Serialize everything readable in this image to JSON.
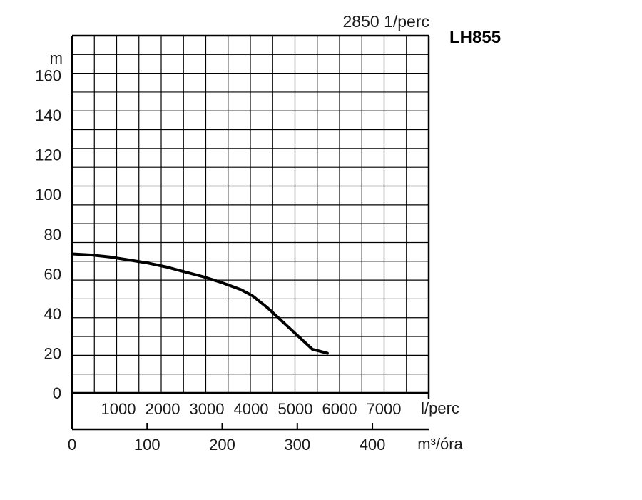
{
  "chart_data": {
    "type": "line",
    "speed_label": "2850 1/perc",
    "model_label": "LH855",
    "y_unit": "m",
    "ylim": [
      0,
      180
    ],
    "y_ticks": [
      {
        "value": 0,
        "label": "0"
      },
      {
        "value": 20,
        "label": "20"
      },
      {
        "value": 40,
        "label": "40"
      },
      {
        "value": 60,
        "label": "60"
      },
      {
        "value": 80,
        "label": "80"
      },
      {
        "value": 100,
        "label": "100"
      },
      {
        "value": 120,
        "label": "120"
      },
      {
        "value": 140,
        "label": "140"
      },
      {
        "value": 160,
        "label": "160"
      }
    ],
    "x_unit": "m³/óra",
    "xlim": [
      0,
      475
    ],
    "x_ticks": [
      {
        "value": 0,
        "label": "0"
      },
      {
        "value": 100,
        "label": "100"
      },
      {
        "value": 200,
        "label": "200"
      },
      {
        "value": 300,
        "label": "300"
      },
      {
        "value": 400,
        "label": "400"
      }
    ],
    "x2_unit": "l/perc",
    "x2_ticks": [
      "1000",
      "2000",
      "3000",
      "4000",
      "5000",
      "6000",
      "7000"
    ],
    "grid": true,
    "series": [
      {
        "color": "#000000",
        "x": [
          0,
          25,
          50,
          75,
          100,
          125,
          150,
          175,
          200,
          225,
          240,
          260,
          280,
          300,
          320,
          340
        ],
        "y": [
          70,
          69.5,
          68.5,
          67,
          65.5,
          63.5,
          61,
          58.5,
          55.5,
          52,
          49,
          43,
          36,
          29,
          22,
          20
        ]
      }
    ]
  }
}
